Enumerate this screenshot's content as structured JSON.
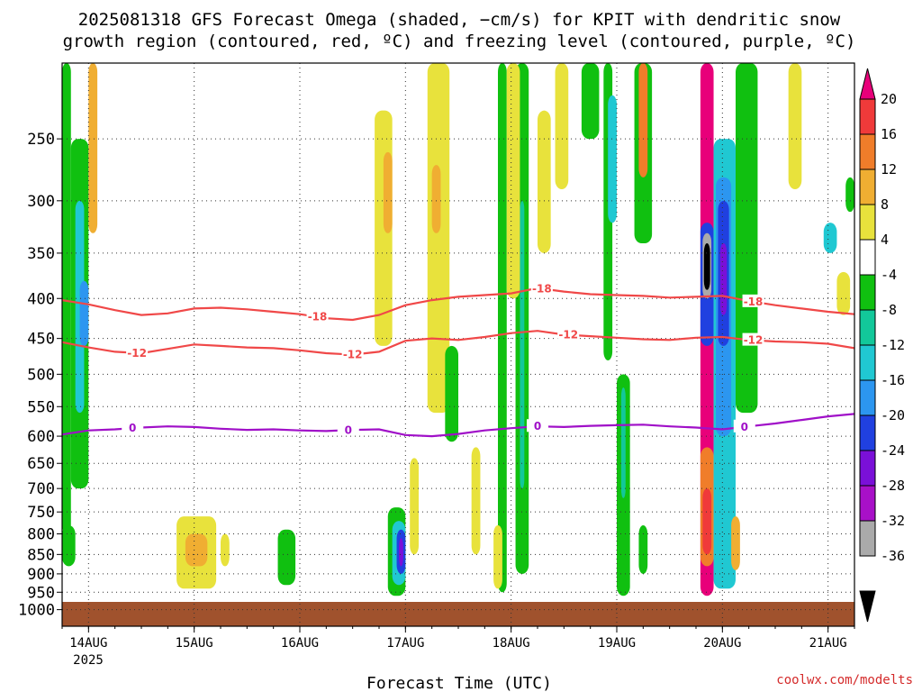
{
  "chart_data": {
    "type": "heatmap",
    "title_line1": "2025081318 GFS Forecast Omega (shaded, −cm/s) for KPIT with dendritic snow",
    "title_line2": "growth region (contoured, red, ºC) and freezing level (contoured, purple, ºC)",
    "xlabel": "Forecast Time (UTC)",
    "x_ticks": [
      {
        "label": "14AUG",
        "hours": 6
      },
      {
        "label": "15AUG",
        "hours": 30
      },
      {
        "label": "16AUG",
        "hours": 54
      },
      {
        "label": "17AUG",
        "hours": 78
      },
      {
        "label": "18AUG",
        "hours": 102
      },
      {
        "label": "19AUG",
        "hours": 126
      },
      {
        "label": "20AUG",
        "hours": 150
      },
      {
        "label": "21AUG",
        "hours": 174
      }
    ],
    "x_year_label": "2025",
    "xlim_hours": [
      0,
      180
    ],
    "y_ticks": [
      250,
      300,
      350,
      400,
      450,
      500,
      550,
      600,
      650,
      700,
      750,
      800,
      850,
      900,
      950,
      1000
    ],
    "ylim_hpa": [
      200,
      1050
    ],
    "y_scale": "log",
    "grid": true,
    "colorbar_labels": [
      "20",
      "16",
      "12",
      "8",
      "4",
      "-4",
      "-8",
      "-12",
      "-16",
      "-20",
      "-24",
      "-28",
      "-32",
      "-36"
    ],
    "colorbar_colors": [
      "#e8007a",
      "#f03a3a",
      "#f07d2a",
      "#f0ae32",
      "#e8e23c",
      "#ffffff",
      "#10c010",
      "#12c89a",
      "#20c8d2",
      "#2c96f0",
      "#2040e0",
      "#7a10d8",
      "#a810c8",
      "#aaaaaa",
      "#000000"
    ],
    "surface_color": "#a0522d",
    "contours": [
      {
        "label": "-18",
        "color": "#f04848",
        "points": [
          [
            0,
            402
          ],
          [
            6,
            407
          ],
          [
            12,
            414
          ],
          [
            18,
            420
          ],
          [
            24,
            418
          ],
          [
            30,
            412
          ],
          [
            36,
            411
          ],
          [
            42,
            413
          ],
          [
            48,
            416
          ],
          [
            54,
            419
          ],
          [
            60,
            424
          ],
          [
            66,
            426
          ],
          [
            72,
            420
          ],
          [
            78,
            408
          ],
          [
            84,
            402
          ],
          [
            90,
            398
          ],
          [
            96,
            396
          ],
          [
            102,
            394
          ],
          [
            108,
            388
          ],
          [
            114,
            392
          ],
          [
            120,
            395
          ],
          [
            126,
            396
          ],
          [
            132,
            397
          ],
          [
            138,
            399
          ],
          [
            144,
            398
          ],
          [
            150,
            397
          ],
          [
            156,
            403
          ],
          [
            162,
            408
          ],
          [
            168,
            412
          ],
          [
            174,
            416
          ],
          [
            180,
            419
          ]
        ],
        "label_hours": [
          58,
          109,
          157
        ]
      },
      {
        "label": "-12",
        "color": "#f04848",
        "points": [
          [
            0,
            455
          ],
          [
            6,
            462
          ],
          [
            12,
            468
          ],
          [
            18,
            470
          ],
          [
            24,
            464
          ],
          [
            30,
            458
          ],
          [
            36,
            460
          ],
          [
            42,
            462
          ],
          [
            48,
            463
          ],
          [
            54,
            466
          ],
          [
            60,
            470
          ],
          [
            66,
            472
          ],
          [
            72,
            468
          ],
          [
            78,
            453
          ],
          [
            84,
            450
          ],
          [
            90,
            452
          ],
          [
            96,
            448
          ],
          [
            102,
            443
          ],
          [
            108,
            440
          ],
          [
            114,
            445
          ],
          [
            120,
            447
          ],
          [
            126,
            449
          ],
          [
            132,
            451
          ],
          [
            138,
            452
          ],
          [
            144,
            449
          ],
          [
            150,
            448
          ],
          [
            156,
            452
          ],
          [
            162,
            454
          ],
          [
            168,
            455
          ],
          [
            174,
            457
          ],
          [
            180,
            463
          ]
        ],
        "label_hours": [
          17,
          66,
          115,
          157
        ]
      },
      {
        "label": "0",
        "color": "#a010c8",
        "points": [
          [
            0,
            597
          ],
          [
            6,
            590
          ],
          [
            12,
            588
          ],
          [
            18,
            585
          ],
          [
            24,
            583
          ],
          [
            30,
            584
          ],
          [
            36,
            587
          ],
          [
            42,
            589
          ],
          [
            48,
            588
          ],
          [
            54,
            590
          ],
          [
            60,
            591
          ],
          [
            66,
            589
          ],
          [
            72,
            588
          ],
          [
            78,
            598
          ],
          [
            84,
            600
          ],
          [
            90,
            596
          ],
          [
            96,
            590
          ],
          [
            102,
            586
          ],
          [
            108,
            583
          ],
          [
            114,
            584
          ],
          [
            120,
            582
          ],
          [
            126,
            581
          ],
          [
            132,
            580
          ],
          [
            138,
            583
          ],
          [
            144,
            585
          ],
          [
            150,
            588
          ],
          [
            156,
            583
          ],
          [
            162,
            578
          ],
          [
            168,
            572
          ],
          [
            174,
            566
          ],
          [
            180,
            562
          ]
        ],
        "label_hours": [
          16,
          65,
          108,
          155
        ]
      }
    ],
    "omega_cells": [
      {
        "t0": 0,
        "t1": 2,
        "p0": 200,
        "p1": 800,
        "c": "#10c010"
      },
      {
        "t0": 2,
        "t1": 6,
        "p0": 250,
        "p1": 700,
        "c": "#10c010"
      },
      {
        "t0": 3,
        "t1": 5,
        "p0": 300,
        "p1": 560,
        "c": "#20c8d2"
      },
      {
        "t0": 4,
        "t1": 6,
        "p0": 380,
        "p1": 460,
        "c": "#2c96f0"
      },
      {
        "t0": 0,
        "t1": 3,
        "p0": 780,
        "p1": 880,
        "c": "#10c010"
      },
      {
        "t0": 6,
        "t1": 8,
        "p0": 200,
        "p1": 330,
        "c": "#f0ae32"
      },
      {
        "t0": 26,
        "t1": 35,
        "p0": 760,
        "p1": 940,
        "c": "#e8e23c"
      },
      {
        "t0": 28,
        "t1": 33,
        "p0": 800,
        "p1": 880,
        "c": "#f0ae32"
      },
      {
        "t0": 36,
        "t1": 38,
        "p0": 800,
        "p1": 880,
        "c": "#e8e23c"
      },
      {
        "t0": 49,
        "t1": 53,
        "p0": 790,
        "p1": 930,
        "c": "#10c010"
      },
      {
        "t0": 74,
        "t1": 78,
        "p0": 740,
        "p1": 960,
        "c": "#10c010"
      },
      {
        "t0": 75,
        "t1": 78,
        "p0": 770,
        "p1": 930,
        "c": "#20c8d2"
      },
      {
        "t0": 76,
        "t1": 78,
        "p0": 790,
        "p1": 900,
        "c": "#2040e0"
      },
      {
        "t0": 76.5,
        "t1": 77.5,
        "p0": 810,
        "p1": 880,
        "c": "#7a10d8"
      },
      {
        "t0": 79,
        "t1": 81,
        "p0": 640,
        "p1": 850,
        "c": "#e8e23c"
      },
      {
        "t0": 71,
        "t1": 75,
        "p0": 230,
        "p1": 460,
        "c": "#e8e23c"
      },
      {
        "t0": 73,
        "t1": 75,
        "p0": 260,
        "p1": 330,
        "c": "#f0ae32"
      },
      {
        "t0": 83,
        "t1": 88,
        "p0": 200,
        "p1": 560,
        "c": "#e8e23c"
      },
      {
        "t0": 84,
        "t1": 86,
        "p0": 270,
        "p1": 330,
        "c": "#f0ae32"
      },
      {
        "t0": 87,
        "t1": 90,
        "p0": 460,
        "p1": 610,
        "c": "#10c010"
      },
      {
        "t0": 93,
        "t1": 95,
        "p0": 620,
        "p1": 850,
        "c": "#e8e23c"
      },
      {
        "t0": 99,
        "t1": 101,
        "p0": 200,
        "p1": 950,
        "c": "#10c010"
      },
      {
        "t0": 98,
        "t1": 100,
        "p0": 780,
        "p1": 940,
        "c": "#e8e23c"
      },
      {
        "t0": 103,
        "t1": 106,
        "p0": 200,
        "p1": 900,
        "c": "#10c010"
      },
      {
        "t0": 104,
        "t1": 105,
        "p0": 300,
        "p1": 700,
        "c": "#12c89a"
      },
      {
        "t0": 101,
        "t1": 104,
        "p0": 200,
        "p1": 400,
        "c": "#e8e23c"
      },
      {
        "t0": 108,
        "t1": 111,
        "p0": 230,
        "p1": 350,
        "c": "#e8e23c"
      },
      {
        "t0": 112,
        "t1": 115,
        "p0": 200,
        "p1": 290,
        "c": "#e8e23c"
      },
      {
        "t0": 118,
        "t1": 122,
        "p0": 200,
        "p1": 250,
        "c": "#10c010"
      },
      {
        "t0": 123,
        "t1": 125,
        "p0": 200,
        "p1": 480,
        "c": "#10c010"
      },
      {
        "t0": 124,
        "t1": 126,
        "p0": 220,
        "p1": 320,
        "c": "#20c8d2"
      },
      {
        "t0": 126,
        "t1": 129,
        "p0": 500,
        "p1": 960,
        "c": "#10c010"
      },
      {
        "t0": 127,
        "t1": 128,
        "p0": 520,
        "p1": 720,
        "c": "#12c89a"
      },
      {
        "t0": 130,
        "t1": 134,
        "p0": 200,
        "p1": 340,
        "c": "#10c010"
      },
      {
        "t0": 131,
        "t1": 133,
        "p0": 200,
        "p1": 280,
        "c": "#f07d2a"
      },
      {
        "t0": 131,
        "t1": 133,
        "p0": 780,
        "p1": 900,
        "c": "#10c010"
      },
      {
        "t0": 145,
        "t1": 148,
        "p0": 200,
        "p1": 960,
        "c": "#e8007a"
      },
      {
        "t0": 145,
        "t1": 148,
        "p0": 620,
        "p1": 880,
        "c": "#f07d2a"
      },
      {
        "t0": 145.5,
        "t1": 147.5,
        "p0": 700,
        "p1": 850,
        "c": "#f03a3a"
      },
      {
        "t0": 145,
        "t1": 148,
        "p0": 320,
        "p1": 460,
        "c": "#2040e0"
      },
      {
        "t0": 145.5,
        "t1": 147.5,
        "p0": 330,
        "p1": 400,
        "c": "#aaaaaa"
      },
      {
        "t0": 145.8,
        "t1": 147.2,
        "p0": 340,
        "p1": 390,
        "c": "#000000"
      },
      {
        "t0": 148,
        "t1": 153,
        "p0": 250,
        "p1": 940,
        "c": "#20c8d2"
      },
      {
        "t0": 148.5,
        "t1": 152,
        "p0": 280,
        "p1": 600,
        "c": "#2c96f0"
      },
      {
        "t0": 149,
        "t1": 151.5,
        "p0": 300,
        "p1": 460,
        "c": "#2040e0"
      },
      {
        "t0": 149.5,
        "t1": 151,
        "p0": 340,
        "p1": 420,
        "c": "#7a10d8"
      },
      {
        "t0": 153,
        "t1": 158,
        "p0": 200,
        "p1": 560,
        "c": "#10c010"
      },
      {
        "t0": 152,
        "t1": 154,
        "p0": 760,
        "p1": 890,
        "c": "#f0ae32"
      },
      {
        "t0": 165,
        "t1": 168,
        "p0": 200,
        "p1": 290,
        "c": "#e8e23c"
      },
      {
        "t0": 173,
        "t1": 176,
        "p0": 320,
        "p1": 350,
        "c": "#20c8d2"
      },
      {
        "t0": 176,
        "t1": 179,
        "p0": 370,
        "p1": 420,
        "c": "#e8e23c"
      },
      {
        "t0": 178,
        "t1": 180,
        "p0": 280,
        "p1": 310,
        "c": "#10c010"
      }
    ]
  },
  "credit": "coolwx.com/modelts"
}
